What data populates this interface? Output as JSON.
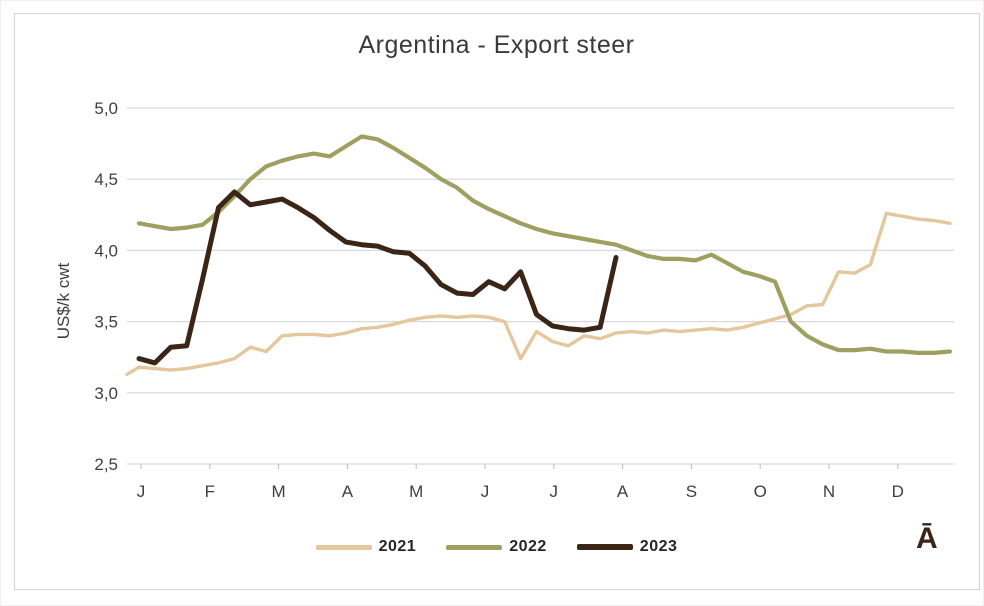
{
  "chart_data": {
    "type": "line",
    "title": "Argentina - Export steer",
    "ylabel": "US$/k cwt",
    "ylim": [
      2.5,
      5.0
    ],
    "grid": true,
    "legend_position": "bottom",
    "x_unit": "weekly",
    "x_months": [
      "J",
      "F",
      "M",
      "A",
      "M",
      "J",
      "J",
      "A",
      "S",
      "O",
      "N",
      "D"
    ],
    "y_ticks": [
      {
        "label": "5,0",
        "value": 5.0
      },
      {
        "label": "4,5",
        "value": 4.5
      },
      {
        "label": "4,0",
        "value": 4.0
      },
      {
        "label": "3,5",
        "value": 3.5
      },
      {
        "label": "3,0",
        "value": 3.0
      },
      {
        "label": "2,5",
        "value": 2.5
      }
    ],
    "series": [
      {
        "name": "2021",
        "color": "#e4c79c",
        "lead_value": 3.13,
        "values": [
          3.18,
          3.17,
          3.16,
          3.17,
          3.19,
          3.21,
          3.24,
          3.32,
          3.29,
          3.4,
          3.41,
          3.41,
          3.4,
          3.42,
          3.45,
          3.46,
          3.48,
          3.51,
          3.53,
          3.54,
          3.53,
          3.54,
          3.53,
          3.5,
          3.24,
          3.43,
          3.36,
          3.33,
          3.4,
          3.38,
          3.42,
          3.43,
          3.42,
          3.44,
          3.43,
          3.44,
          3.45,
          3.44,
          3.46,
          3.49,
          3.52,
          3.55,
          3.61,
          3.62,
          3.85,
          3.84,
          3.9,
          4.26,
          4.24,
          4.22,
          4.21,
          4.19
        ]
      },
      {
        "name": "2022",
        "color": "#9e9f60",
        "values": [
          4.19,
          4.17,
          4.15,
          4.16,
          4.18,
          4.27,
          4.38,
          4.5,
          4.59,
          4.63,
          4.66,
          4.68,
          4.66,
          4.73,
          4.8,
          4.78,
          4.72,
          4.65,
          4.58,
          4.5,
          4.44,
          4.35,
          4.29,
          4.24,
          4.19,
          4.15,
          4.12,
          4.1,
          4.08,
          4.06,
          4.04,
          4.0,
          3.96,
          3.94,
          3.94,
          3.93,
          3.97,
          3.91,
          3.85,
          3.82,
          3.78,
          3.5,
          3.4,
          3.34,
          3.3,
          3.3,
          3.31,
          3.29,
          3.29,
          3.28,
          3.28,
          3.29
        ]
      },
      {
        "name": "2023",
        "color": "#3a2517",
        "values": [
          3.24,
          3.21,
          3.32,
          3.33,
          3.8,
          4.3,
          4.41,
          4.32,
          4.34,
          4.36,
          4.3,
          4.23,
          4.14,
          4.06,
          4.04,
          4.03,
          3.99,
          3.98,
          3.89,
          3.76,
          3.7,
          3.69,
          3.78,
          3.73,
          3.85,
          3.55,
          3.47,
          3.45,
          3.44,
          3.46,
          3.95
        ]
      }
    ]
  },
  "watermark": {
    "text": "Ā",
    "color": "#3a2517"
  },
  "colors": {
    "grid": "#d9d9d9",
    "axis_text": "#3f3f3f",
    "tick": "#bfbfbf",
    "frame_border": "#d6d3d3"
  }
}
